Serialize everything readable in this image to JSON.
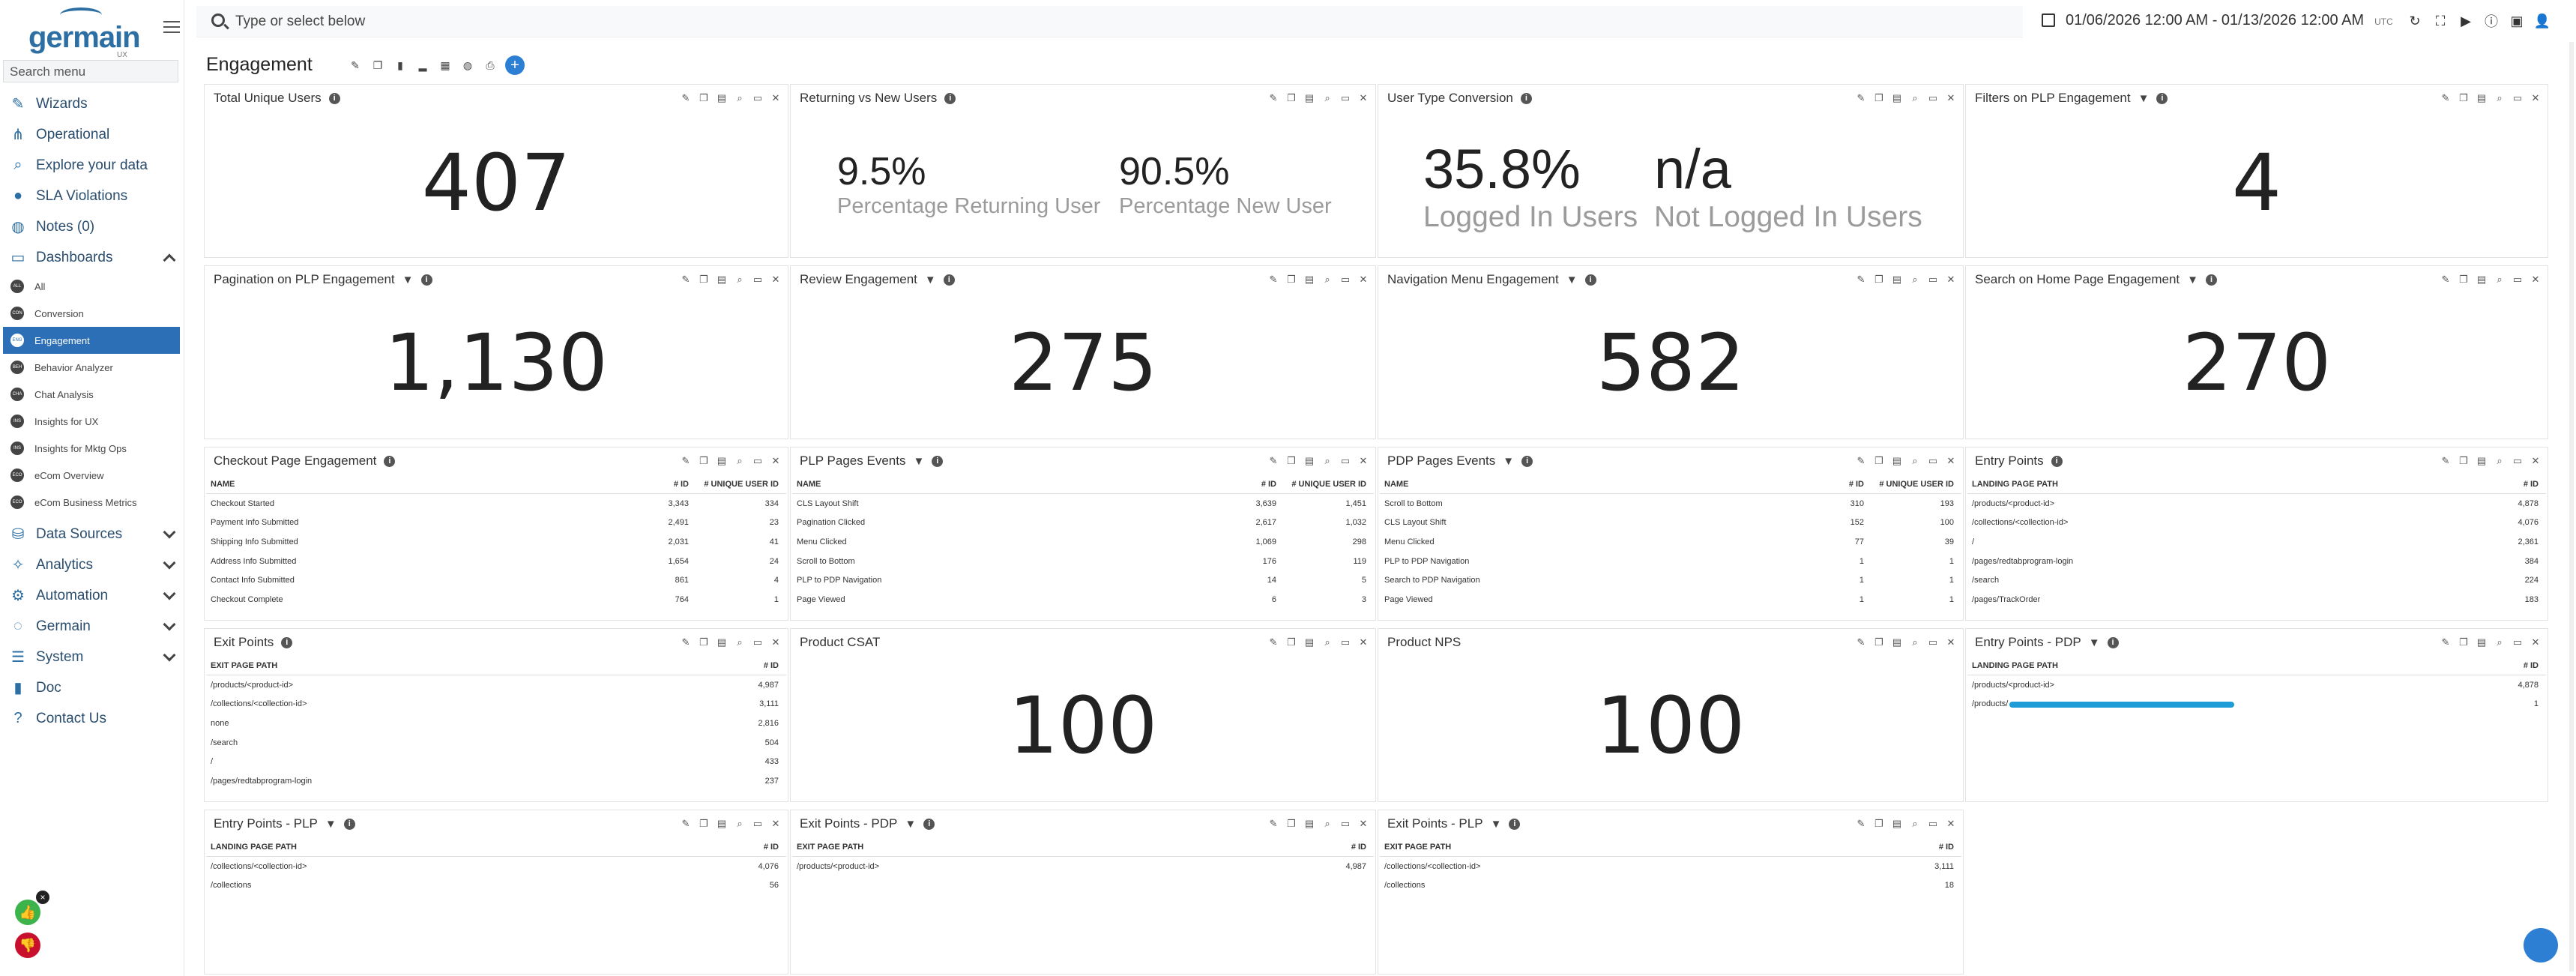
{
  "sidebar": {
    "logo_text": "germain",
    "logo_sub": "UX",
    "search_placeholder": "Search menu",
    "items": [
      {
        "label": "Wizards",
        "icon": "pencil-icon"
      },
      {
        "label": "Operational",
        "icon": "hierarchy-icon"
      },
      {
        "label": "Explore your data",
        "icon": "magnifier-icon"
      },
      {
        "label": "SLA Violations",
        "icon": "alert-icon"
      },
      {
        "label": "Notes (0)",
        "icon": "speech-bubble-icon"
      },
      {
        "label": "Dashboards",
        "icon": "monitor-icon"
      }
    ],
    "dashboards": [
      {
        "badge": "ALL",
        "label": "All"
      },
      {
        "badge": "CON",
        "label": "Conversion"
      },
      {
        "badge": "ENG",
        "label": "Engagement"
      },
      {
        "badge": "BEH",
        "label": "Behavior Analyzer"
      },
      {
        "badge": "CHA",
        "label": "Chat Analysis"
      },
      {
        "badge": "INS",
        "label": "Insights for UX"
      },
      {
        "badge": "INS",
        "label": "Insights for Mktg Ops"
      },
      {
        "badge": "ECO",
        "label": "eCom Overview"
      },
      {
        "badge": "ECO",
        "label": "eCom Business Metrics"
      }
    ],
    "items2": [
      {
        "label": "Data Sources",
        "icon": "database-icon"
      },
      {
        "label": "Analytics",
        "icon": "analytics-icon"
      },
      {
        "label": "Automation",
        "icon": "gear-icon"
      },
      {
        "label": "Germain",
        "icon": "germain-icon"
      },
      {
        "label": "System",
        "icon": "settings-icon"
      },
      {
        "label": "Doc",
        "icon": "book-icon"
      },
      {
        "label": "Contact Us",
        "icon": "question-icon"
      }
    ]
  },
  "topbar": {
    "search_placeholder": "Type or select below",
    "date_range": "01/06/2026 12:00 AM - 01/13/2026 12:00 AM",
    "tz": "UTC"
  },
  "page": {
    "title": "Engagement"
  },
  "colors": {
    "accent": "#2d6fb6",
    "redaction": "#1e9cd7"
  },
  "panels": {
    "total_unique_users": {
      "title": "Total Unique Users",
      "value": "407"
    },
    "returning_vs_new": {
      "title": "Returning vs New Users",
      "a_value": "9.5%",
      "a_label": "Percentage Returning User",
      "b_value": "90.5%",
      "b_label": "Percentage New User"
    },
    "user_type_conversion": {
      "title": "User Type Conversion",
      "a_value": "35.8%",
      "a_label": "Logged In Users",
      "b_value": "n/a",
      "b_label": "Not Logged In Users"
    },
    "filters_plp": {
      "title": "Filters on PLP Engagement",
      "value": "4"
    },
    "pagination_plp": {
      "title": "Pagination on PLP Engagement",
      "value": "1,130"
    },
    "review": {
      "title": "Review Engagement",
      "value": "275"
    },
    "nav_menu": {
      "title": "Navigation Menu Engagement",
      "value": "582"
    },
    "search_home": {
      "title": "Search on Home Page Engagement",
      "value": "270"
    },
    "checkout": {
      "title": "Checkout Page Engagement",
      "h0": "NAME",
      "h1": "# ID",
      "h2": "# UNIQUE USER ID",
      "rows": [
        [
          "Checkout Started",
          "3,343",
          "334"
        ],
        [
          "Payment Info Submitted",
          "2,491",
          "23"
        ],
        [
          "Shipping Info Submitted",
          "2,031",
          "41"
        ],
        [
          "Address Info Submitted",
          "1,654",
          "24"
        ],
        [
          "Contact Info Submitted",
          "861",
          "4"
        ],
        [
          "Checkout Complete",
          "764",
          "1"
        ]
      ]
    },
    "plp_events": {
      "title": "PLP Pages Events",
      "h0": "NAME",
      "h1": "# ID",
      "h2": "# UNIQUE USER ID",
      "rows": [
        [
          "CLS Layout Shift",
          "3,639",
          "1,451"
        ],
        [
          "Pagination Clicked",
          "2,617",
          "1,032"
        ],
        [
          "Menu Clicked",
          "1,069",
          "298"
        ],
        [
          "Scroll to Bottom",
          "176",
          "119"
        ],
        [
          "PLP to PDP Navigation",
          "14",
          "5"
        ],
        [
          "Page Viewed",
          "6",
          "3"
        ]
      ]
    },
    "pdp_events": {
      "title": "PDP Pages Events",
      "h0": "NAME",
      "h1": "# ID",
      "h2": "# UNIQUE USER ID",
      "rows": [
        [
          "Scroll to Bottom",
          "310",
          "193"
        ],
        [
          "CLS Layout Shift",
          "152",
          "100"
        ],
        [
          "Menu Clicked",
          "77",
          "39"
        ],
        [
          "PLP to PDP Navigation",
          "1",
          "1"
        ],
        [
          "Search to PDP Navigation",
          "1",
          "1"
        ],
        [
          "Page Viewed",
          "1",
          "1"
        ]
      ]
    },
    "entry_points": {
      "title": "Entry Points",
      "h0": "LANDING PAGE PATH",
      "h1": "# ID",
      "rows": [
        [
          "/products/<product-id>",
          "4,878"
        ],
        [
          "/collections/<collection-id>",
          "4,076"
        ],
        [
          "/",
          "2,361"
        ],
        [
          "/pages/redtabprogram-login",
          "384"
        ],
        [
          "/search",
          "224"
        ],
        [
          "/pages/TrackOrder",
          "183"
        ]
      ]
    },
    "exit_points": {
      "title": "Exit Points",
      "h0": "EXIT PAGE PATH",
      "h1": "# ID",
      "rows": [
        [
          "/products/<product-id>",
          "4,987"
        ],
        [
          "/collections/<collection-id>",
          "3,111"
        ],
        [
          "none",
          "2,816"
        ],
        [
          "/search",
          "504"
        ],
        [
          "/",
          "433"
        ],
        [
          "/pages/redtabprogram-login",
          "237"
        ]
      ]
    },
    "product_csat": {
      "title": "Product CSAT",
      "value": "100"
    },
    "product_nps": {
      "title": "Product NPS",
      "value": "100"
    },
    "entry_pdp": {
      "title": "Entry Points - PDP",
      "h0": "LANDING PAGE PATH",
      "h1": "# ID",
      "rows": [
        [
          "/products/<product-id>",
          "4,878"
        ],
        [
          "/products/",
          "1"
        ]
      ]
    },
    "entry_plp": {
      "title": "Entry Points - PLP",
      "h0": "LANDING PAGE PATH",
      "h1": "# ID",
      "rows": [
        [
          "/collections/<collection-id>",
          "4,076"
        ],
        [
          "/collections",
          "56"
        ]
      ]
    },
    "exit_pdp": {
      "title": "Exit Points - PDP",
      "h0": "EXIT PAGE PATH",
      "h1": "# ID",
      "rows": [
        [
          "/products/<product-id>",
          "4,987"
        ]
      ]
    },
    "exit_plp": {
      "title": "Exit Points - PLP",
      "h0": "EXIT PAGE PATH",
      "h1": "# ID",
      "rows": [
        [
          "/collections/<collection-id>",
          "3,111"
        ],
        [
          "/collections",
          "18"
        ]
      ]
    }
  }
}
